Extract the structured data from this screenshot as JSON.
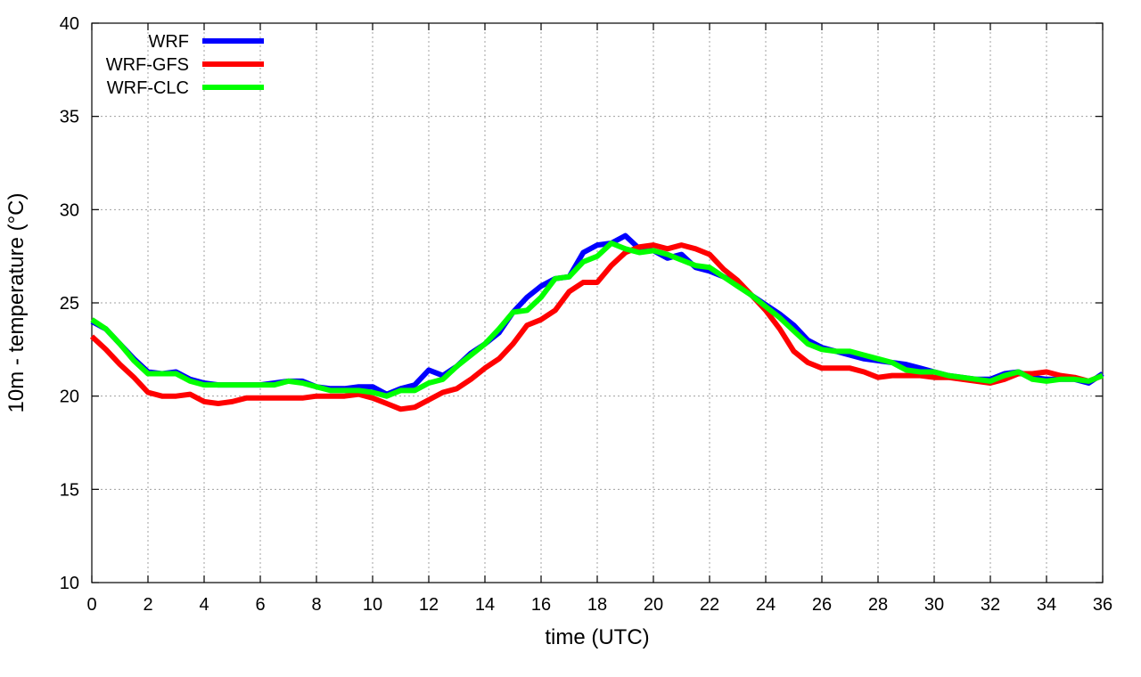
{
  "chart_data": {
    "type": "line",
    "xlabel": "time (UTC)",
    "ylabel": "10m - temperature (°C)",
    "xlim": [
      0,
      36
    ],
    "ylim": [
      10,
      40
    ],
    "xticks": [
      0,
      2,
      4,
      6,
      8,
      10,
      12,
      14,
      16,
      18,
      20,
      22,
      24,
      26,
      28,
      30,
      32,
      34,
      36
    ],
    "yticks": [
      10,
      15,
      20,
      25,
      30,
      35,
      40
    ],
    "grid": true,
    "legend_position": "top-left",
    "series": [
      {
        "name": "WRF",
        "color": "#0000ff",
        "x": [
          0,
          0.5,
          1,
          1.5,
          2,
          2.5,
          3,
          3.5,
          4,
          4.5,
          5,
          5.5,
          6,
          6.5,
          7,
          7.5,
          8,
          8.5,
          9,
          9.5,
          10,
          10.5,
          11,
          11.5,
          12,
          12.5,
          13,
          13.5,
          14,
          14.5,
          15,
          15.5,
          16,
          16.5,
          17,
          17.5,
          18,
          18.5,
          19,
          19.5,
          20,
          20.5,
          21,
          21.5,
          22,
          22.5,
          23,
          23.5,
          24,
          24.5,
          25,
          25.5,
          26,
          26.5,
          27,
          27.5,
          28,
          28.5,
          29,
          29.5,
          30,
          30.5,
          31,
          31.5,
          32,
          32.5,
          33,
          33.5,
          34,
          34.5,
          35,
          35.5,
          36
        ],
        "y": [
          24.0,
          23.6,
          22.8,
          22.0,
          21.3,
          21.2,
          21.3,
          20.9,
          20.7,
          20.6,
          20.6,
          20.6,
          20.6,
          20.7,
          20.8,
          20.8,
          20.5,
          20.4,
          20.4,
          20.5,
          20.5,
          20.1,
          20.4,
          20.6,
          21.4,
          21.1,
          21.6,
          22.3,
          22.8,
          23.4,
          24.5,
          25.3,
          25.9,
          26.3,
          26.4,
          27.7,
          28.1,
          28.2,
          28.6,
          27.9,
          27.8,
          27.4,
          27.6,
          26.9,
          26.7,
          26.4,
          26.0,
          25.4,
          24.9,
          24.4,
          23.8,
          23.0,
          22.6,
          22.4,
          22.2,
          22.0,
          21.9,
          21.8,
          21.7,
          21.5,
          21.3,
          21.1,
          21.0,
          20.9,
          20.9,
          21.2,
          21.3,
          21.0,
          20.9,
          20.9,
          20.9,
          20.7,
          21.2
        ]
      },
      {
        "name": "WRF-GFS",
        "color": "#ff0000",
        "x": [
          0,
          0.5,
          1,
          1.5,
          2,
          2.5,
          3,
          3.5,
          4,
          4.5,
          5,
          5.5,
          6,
          6.5,
          7,
          7.5,
          8,
          8.5,
          9,
          9.5,
          10,
          10.5,
          11,
          11.5,
          12,
          12.5,
          13,
          13.5,
          14,
          14.5,
          15,
          15.5,
          16,
          16.5,
          17,
          17.5,
          18,
          18.5,
          19,
          19.5,
          20,
          20.5,
          21,
          21.5,
          22,
          22.5,
          23,
          23.5,
          24,
          24.5,
          25,
          25.5,
          26,
          26.5,
          27,
          27.5,
          28,
          28.5,
          29,
          29.5,
          30,
          30.5,
          31,
          31.5,
          32,
          32.5,
          33,
          33.5,
          34,
          34.5,
          35,
          35.5,
          36
        ],
        "y": [
          23.2,
          22.5,
          21.7,
          21.0,
          20.2,
          20.0,
          20.0,
          20.1,
          19.7,
          19.6,
          19.7,
          19.9,
          19.9,
          19.9,
          19.9,
          19.9,
          20.0,
          20.0,
          20.0,
          20.1,
          19.9,
          19.6,
          19.3,
          19.4,
          19.8,
          20.2,
          20.4,
          20.9,
          21.5,
          22.0,
          22.8,
          23.8,
          24.1,
          24.6,
          25.6,
          26.1,
          26.1,
          27.0,
          27.7,
          28.0,
          28.1,
          27.9,
          28.1,
          27.9,
          27.6,
          26.8,
          26.2,
          25.4,
          24.6,
          23.6,
          22.4,
          21.8,
          21.5,
          21.5,
          21.5,
          21.3,
          21.0,
          21.1,
          21.1,
          21.1,
          21.0,
          21.0,
          20.9,
          20.8,
          20.7,
          20.9,
          21.2,
          21.2,
          21.3,
          21.1,
          21.0,
          20.8,
          21.1
        ]
      },
      {
        "name": "WRF-CLC",
        "color": "#00ff00",
        "x": [
          0,
          0.5,
          1,
          1.5,
          2,
          2.5,
          3,
          3.5,
          4,
          4.5,
          5,
          5.5,
          6,
          6.5,
          7,
          7.5,
          8,
          8.5,
          9,
          9.5,
          10,
          10.5,
          11,
          11.5,
          12,
          12.5,
          13,
          13.5,
          14,
          14.5,
          15,
          15.5,
          16,
          16.5,
          17,
          17.5,
          18,
          18.5,
          19,
          19.5,
          20,
          20.5,
          21,
          21.5,
          22,
          22.5,
          23,
          23.5,
          24,
          24.5,
          25,
          25.5,
          26,
          26.5,
          27,
          27.5,
          28,
          28.5,
          29,
          29.5,
          30,
          30.5,
          31,
          31.5,
          32,
          32.5,
          33,
          33.5,
          34,
          34.5,
          35,
          35.5,
          36
        ],
        "y": [
          24.1,
          23.6,
          22.8,
          21.9,
          21.2,
          21.2,
          21.2,
          20.8,
          20.6,
          20.6,
          20.6,
          20.6,
          20.6,
          20.6,
          20.8,
          20.7,
          20.5,
          20.3,
          20.3,
          20.3,
          20.2,
          20.0,
          20.3,
          20.3,
          20.7,
          20.9,
          21.6,
          22.2,
          22.8,
          23.6,
          24.5,
          24.6,
          25.3,
          26.3,
          26.4,
          27.2,
          27.5,
          28.2,
          27.9,
          27.7,
          27.8,
          27.6,
          27.3,
          27.0,
          26.9,
          26.4,
          25.9,
          25.4,
          24.8,
          24.2,
          23.5,
          22.8,
          22.5,
          22.4,
          22.4,
          22.2,
          22.0,
          21.8,
          21.4,
          21.3,
          21.3,
          21.1,
          21.0,
          20.9,
          20.8,
          21.1,
          21.3,
          20.9,
          20.8,
          20.9,
          20.9,
          20.8,
          21.1
        ]
      }
    ]
  }
}
